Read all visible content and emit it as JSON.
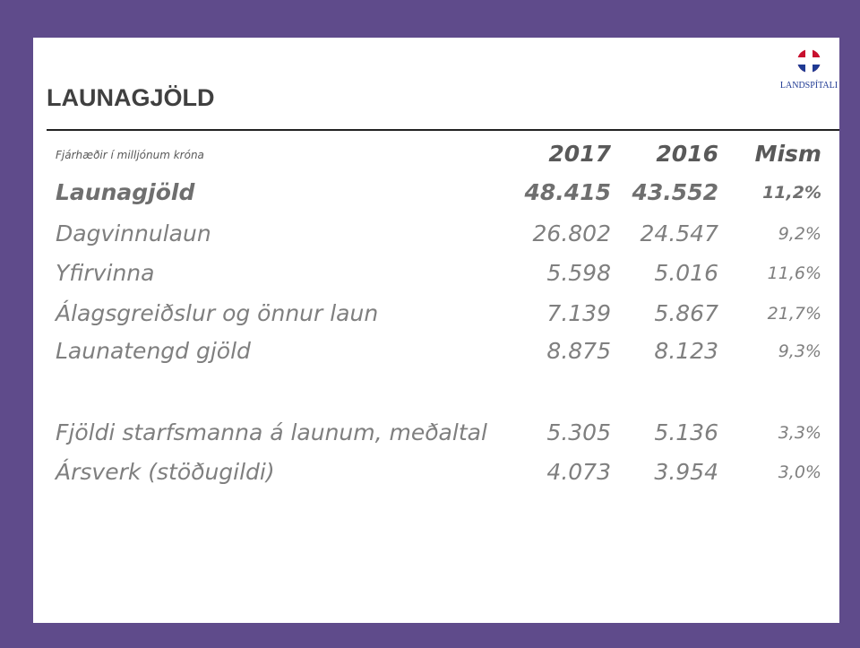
{
  "header": {
    "title": "LAUNAGJÖLD",
    "logo_text": "LANDSPÍTALI"
  },
  "table": {
    "columns": [
      "Fjárhæðir í milljónum króna",
      "2017",
      "2016",
      "Mism"
    ],
    "rows": [
      [
        "Launagjöld",
        "48.415",
        "43.552",
        "11,2%"
      ],
      [
        "Dagvinnulaun",
        "26.802",
        "24.547",
        "9,2%"
      ],
      [
        "Yfirvinna",
        "5.598",
        "5.016",
        "11,6%"
      ],
      [
        "Álagsgreiðslur og önnur laun",
        "7.139",
        "5.867",
        "21,7%"
      ],
      [
        "Launatengd gjöld",
        "8.875",
        "8.123",
        "9,3%"
      ],
      [
        "Fjöldi starfsmanna á launum, meðaltal",
        "5.305",
        "5.136",
        "3,3%"
      ],
      [
        "Ársverk (stöðugildi)",
        "4.073",
        "3.954",
        "3,0%"
      ]
    ]
  }
}
